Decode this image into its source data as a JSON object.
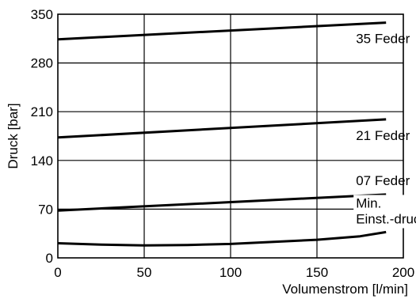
{
  "chart_data": {
    "type": "line",
    "xlabel": "Volumenstrom [l/min]",
    "ylabel": "Druck [bar]",
    "xlim": [
      0,
      200
    ],
    "ylim": [
      0,
      350
    ],
    "x_ticks": [
      0,
      50,
      100,
      150,
      200
    ],
    "y_ticks": [
      0,
      70,
      140,
      210,
      280,
      350
    ],
    "grid": true,
    "series": [
      {
        "name": "35 Feder",
        "x": [
          0,
          190
        ],
        "y": [
          314,
          338
        ]
      },
      {
        "name": "21 Feder",
        "x": [
          0,
          190
        ],
        "y": [
          173,
          199
        ]
      },
      {
        "name": "07 Feder",
        "x": [
          0,
          190
        ],
        "y": [
          68,
          91
        ]
      },
      {
        "name": "Min. Einst.-druck",
        "label_lines": [
          "Min.",
          "Einst.-druck"
        ],
        "x": [
          0,
          25,
          50,
          75,
          100,
          125,
          150,
          175,
          190
        ],
        "y": [
          21,
          19,
          18,
          18.5,
          20,
          23,
          26,
          31,
          37
        ]
      }
    ]
  }
}
